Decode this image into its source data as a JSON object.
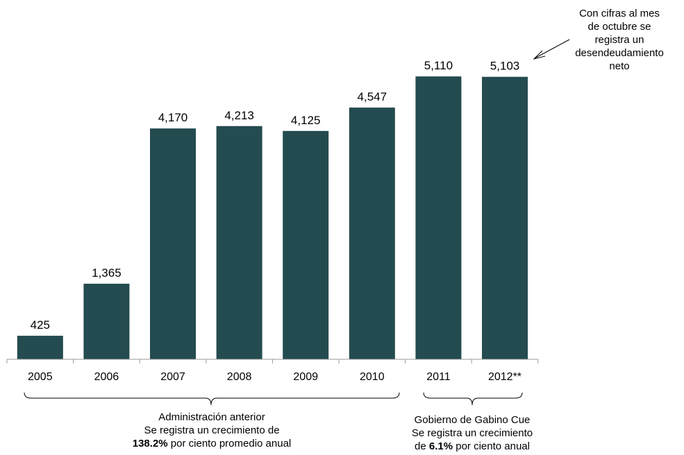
{
  "chart_data": {
    "type": "bar",
    "categories": [
      "2005",
      "2006",
      "2007",
      "2008",
      "2009",
      "2010",
      "2011",
      "2012**"
    ],
    "values": [
      425,
      1365,
      4170,
      4213,
      4125,
      4547,
      5110,
      5103
    ],
    "value_labels": [
      "425",
      "1,365",
      "4,170",
      "4,213",
      "4,125",
      "4,547",
      "5,110",
      "5,103"
    ],
    "title": "",
    "xlabel": "",
    "ylabel": "",
    "ylim": [
      0,
      5200
    ],
    "grid": false,
    "legend": "none",
    "bar_color": "#244b4f"
  },
  "annotations": {
    "note": [
      "Con cifras al mes",
      "de octubre se",
      "registra un",
      "desendeudamiento",
      "neto"
    ],
    "previous_admin": {
      "line1": "Administración anterior",
      "line2": "Se registra un crecimiento de",
      "line3_bold": "138.2%",
      "line3_rest": " por ciento promedio anual"
    },
    "current_admin": {
      "line1": "Gobierno de Gabino Cue",
      "line2": "Se registra un crecimiento",
      "line3_pre": "de ",
      "line3_bold": "6.1%",
      "line3_rest": " por ciento anual"
    }
  }
}
